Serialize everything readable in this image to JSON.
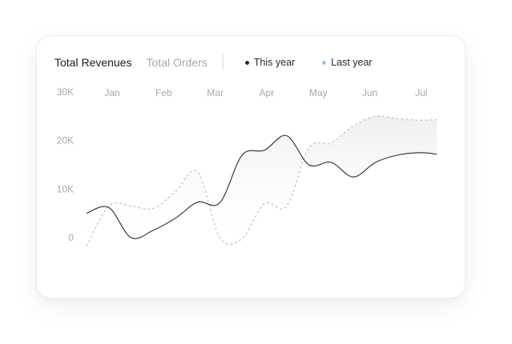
{
  "tabs": {
    "active_label": "Total Revenues",
    "inactive_label": "Total Orders"
  },
  "legend": {
    "this_year": "This year",
    "last_year": "Last year"
  },
  "colors": {
    "this_year": "#2b2b2b",
    "last_year": "#a9c2dc",
    "last_year_line": "#bdbdbd",
    "axis_text": "#a8a8a8"
  },
  "chart_data": {
    "type": "line",
    "categories": [
      "Jan",
      "Feb",
      "Mar",
      "Apr",
      "May",
      "Jun",
      "Jul"
    ],
    "y_ticks": [
      "30K",
      "20K",
      "10K",
      "0"
    ],
    "ylim": [
      0,
      30000
    ],
    "xlabel": "",
    "ylabel": "",
    "grid": false,
    "legend_position": "top",
    "x": [
      0,
      0.4,
      0.8,
      1.2,
      1.6,
      2.0,
      2.4,
      2.8,
      3.2,
      3.6,
      4.0,
      4.4,
      4.8,
      5.2,
      5.6,
      6.0,
      6.3
    ],
    "series": [
      {
        "name": "This year",
        "style": "solid",
        "values": [
          5000,
          6200,
          0,
          1500,
          4000,
          7300,
          7200,
          17000,
          18000,
          21000,
          15000,
          15500,
          12500,
          15500,
          17000,
          17500,
          17200
        ]
      },
      {
        "name": "Last year",
        "style": "dashed",
        "values": [
          -1800,
          6500,
          6500,
          6000,
          9500,
          13500,
          0,
          -200,
          7000,
          6500,
          18500,
          19500,
          23000,
          25000,
          24500,
          24200,
          24300
        ]
      }
    ]
  }
}
